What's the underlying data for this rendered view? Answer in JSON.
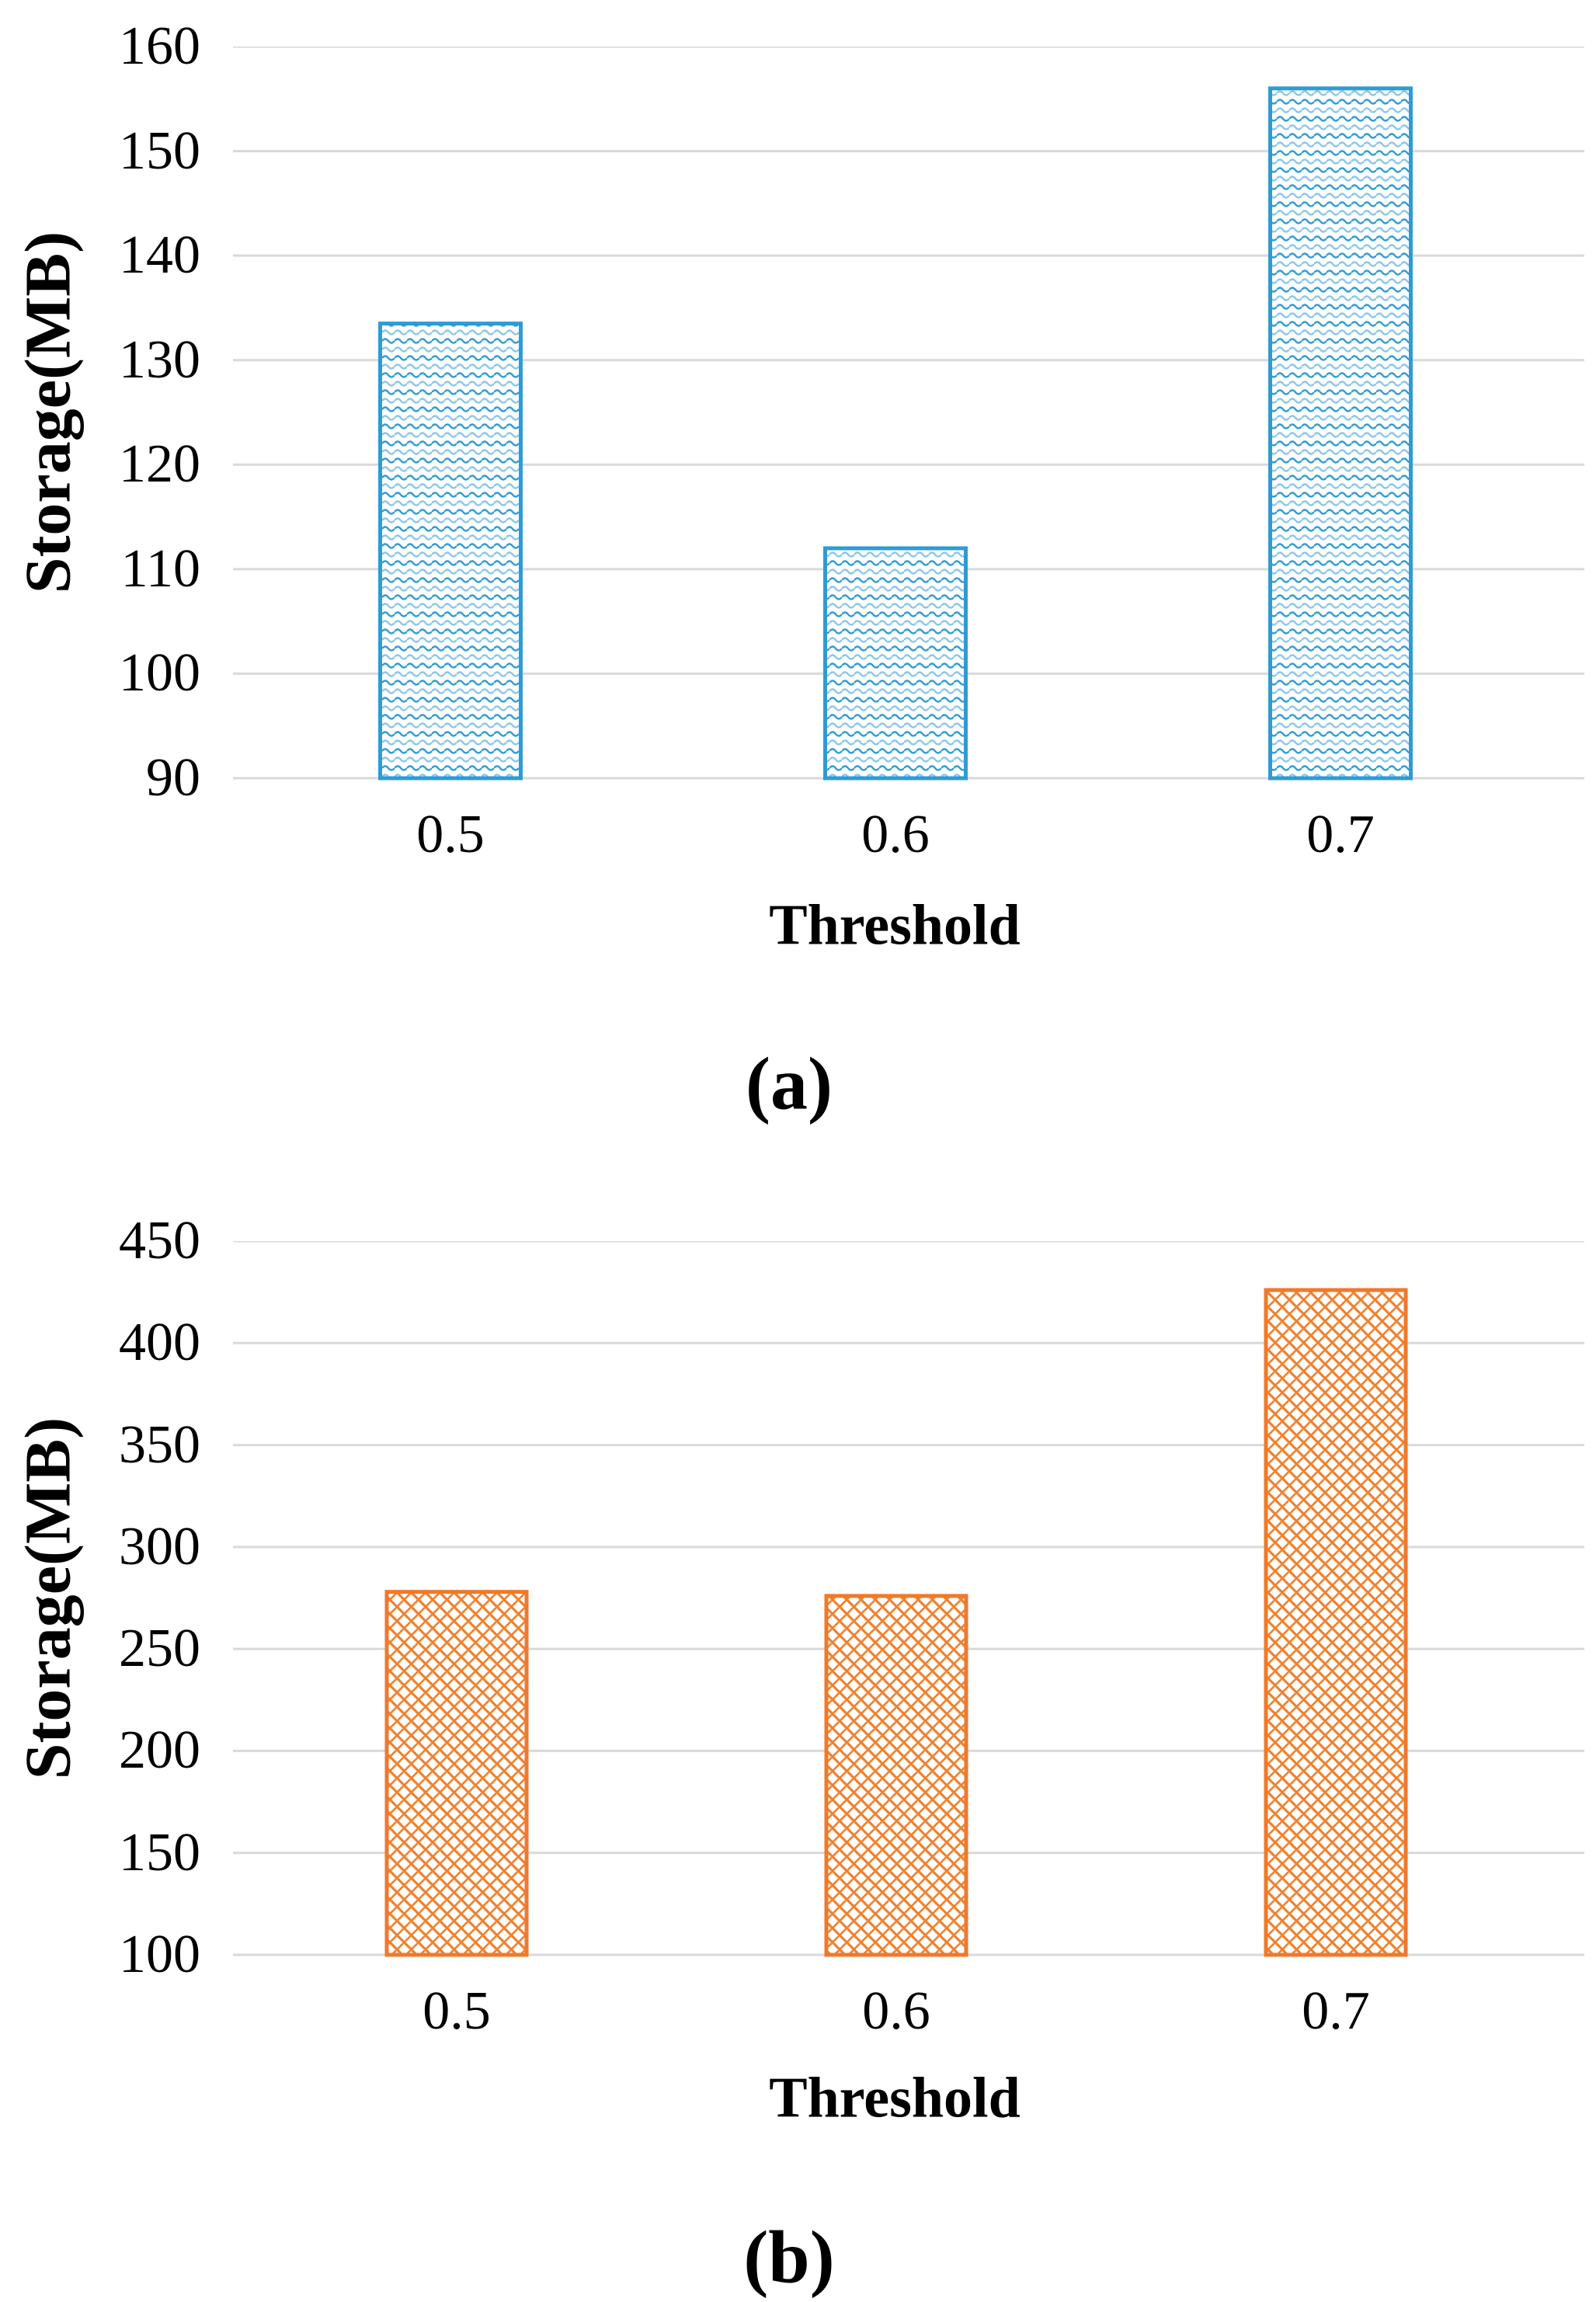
{
  "chart_data": [
    {
      "type": "bar",
      "caption": "(a)",
      "title": "",
      "xlabel": "Threshold",
      "ylabel": "Storage(MB)",
      "categories": [
        "0.5",
        "0.6",
        "0.7"
      ],
      "values": [
        133.5,
        112,
        156
      ],
      "y_ticks": [
        90,
        100,
        110,
        120,
        130,
        140,
        150,
        160
      ],
      "ylim": [
        90,
        160
      ],
      "grid": "horizontal-only",
      "legend": "none",
      "bar_border_color": "#2E9BD6",
      "bar_pattern_color": "#3FA2DA",
      "bar_pattern": "wave-texture",
      "gridline_color": "#D9D9D9"
    },
    {
      "type": "bar",
      "caption": "(b)",
      "title": "",
      "xlabel": "Threshold",
      "ylabel": "Storage(MB)",
      "categories": [
        "0.5",
        "0.6",
        "0.7"
      ],
      "values": [
        278,
        276,
        426
      ],
      "y_ticks": [
        100,
        150,
        200,
        250,
        300,
        350,
        400,
        450
      ],
      "ylim": [
        100,
        450
      ],
      "grid": "horizontal-only",
      "legend": "none",
      "bar_border_color": "#F0792B",
      "bar_pattern_color": "#F0802C",
      "bar_pattern": "diagonal-brick-texture",
      "gridline_color": "#D9D9D9"
    }
  ]
}
